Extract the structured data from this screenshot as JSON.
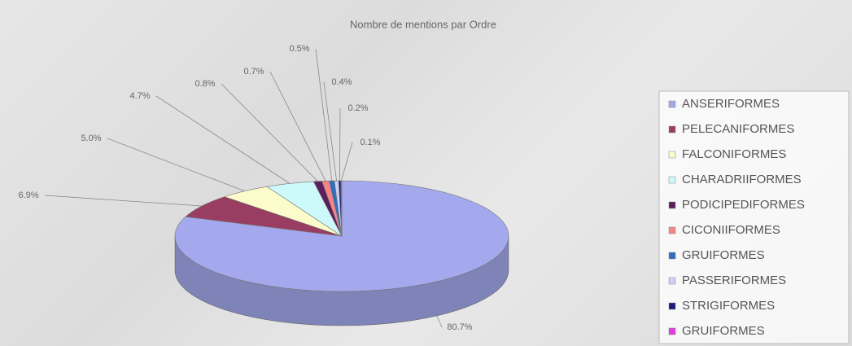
{
  "chart_data": {
    "type": "pie",
    "title": "Nombre de mentions par Ordre",
    "categories": [
      "ANSERIFORMES",
      "PELECANIFORMES",
      "FALCONIFORMES",
      "CHARADRIIFORMES",
      "PODICIPEDIFORMES",
      "CICONIIFORMES",
      "GRUIFORMES",
      "PASSERIFORMES",
      "STRIGIFORMES",
      "GRUIFORMES"
    ],
    "values": [
      80.7,
      6.9,
      5.0,
      4.7,
      0.8,
      0.7,
      0.5,
      0.4,
      0.2,
      0.1
    ],
    "value_labels": [
      "80.7%",
      "6.9%",
      "5.0%",
      "4.7%",
      "0.8%",
      "0.7%",
      "0.5%",
      "0.4%",
      "0.2%",
      "0.1%"
    ],
    "colors": [
      "#a3a9ec",
      "#9a3d62",
      "#fbfbcc",
      "#cdf9fb",
      "#5e1e5e",
      "#f48686",
      "#2f6fc0",
      "#cdd0f7",
      "#1c1c7e",
      "#e23be2"
    ],
    "legend": "right"
  }
}
